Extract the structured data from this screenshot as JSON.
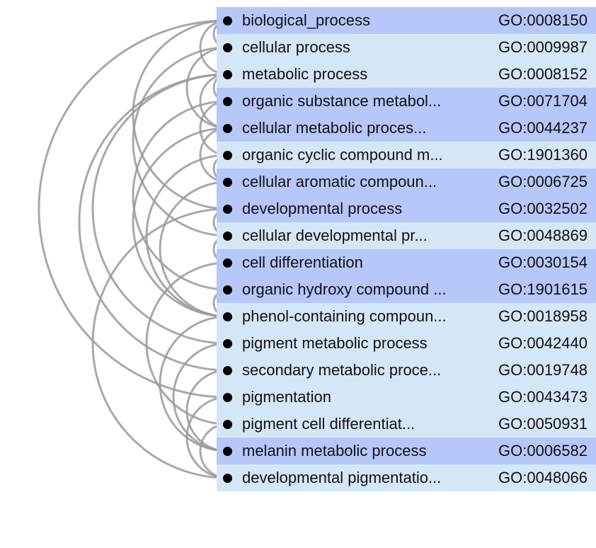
{
  "rows": [
    {
      "name": "biological_process",
      "id": "GO:0008150",
      "shade": "hl"
    },
    {
      "name": "cellular process",
      "id": "GO:0009987",
      "shade": "lt"
    },
    {
      "name": "metabolic process",
      "id": "GO:0008152",
      "shade": "lt"
    },
    {
      "name": "organic substance metabol...",
      "id": "GO:0071704",
      "shade": "hl"
    },
    {
      "name": "cellular metabolic proces...",
      "id": "GO:0044237",
      "shade": "hl"
    },
    {
      "name": "organic cyclic compound m...",
      "id": "GO:1901360",
      "shade": "lt"
    },
    {
      "name": "cellular aromatic compoun...",
      "id": "GO:0006725",
      "shade": "hl"
    },
    {
      "name": "developmental process",
      "id": "GO:0032502",
      "shade": "hl"
    },
    {
      "name": "cellular developmental pr...",
      "id": "GO:0048869",
      "shade": "lt"
    },
    {
      "name": "cell differentiation",
      "id": "GO:0030154",
      "shade": "hl"
    },
    {
      "name": "organic hydroxy compound ...",
      "id": "GO:1901615",
      "shade": "hl"
    },
    {
      "name": "phenol-containing compoun...",
      "id": "GO:0018958",
      "shade": "lt"
    },
    {
      "name": "pigment metabolic process",
      "id": "GO:0042440",
      "shade": "lt"
    },
    {
      "name": "secondary metabolic proce...",
      "id": "GO:0019748",
      "shade": "lt"
    },
    {
      "name": "pigmentation",
      "id": "GO:0043473",
      "shade": "lt"
    },
    {
      "name": "pigment cell differentiat...",
      "id": "GO:0050931",
      "shade": "lt"
    },
    {
      "name": "melanin metabolic process",
      "id": "GO:0006582",
      "shade": "hl"
    },
    {
      "name": "developmental pigmentatio...",
      "id": "GO:0048066",
      "shade": "lt"
    }
  ],
  "edges": [
    [
      0,
      1
    ],
    [
      0,
      2
    ],
    [
      0,
      7
    ],
    [
      0,
      14
    ],
    [
      1,
      4
    ],
    [
      1,
      8
    ],
    [
      2,
      3
    ],
    [
      2,
      4
    ],
    [
      2,
      12
    ],
    [
      2,
      13
    ],
    [
      3,
      5
    ],
    [
      3,
      10
    ],
    [
      4,
      6
    ],
    [
      4,
      11
    ],
    [
      5,
      6
    ],
    [
      5,
      11
    ],
    [
      6,
      11
    ],
    [
      7,
      8
    ],
    [
      7,
      17
    ],
    [
      8,
      9
    ],
    [
      9,
      15
    ],
    [
      10,
      11
    ],
    [
      11,
      16
    ],
    [
      12,
      16
    ],
    [
      13,
      16
    ],
    [
      14,
      17
    ],
    [
      15,
      17
    ]
  ],
  "colors": {
    "highlight": "#b8c7fa",
    "light": "#d5e7f6",
    "edge": "#9a9a9a",
    "dot": "#000000"
  }
}
